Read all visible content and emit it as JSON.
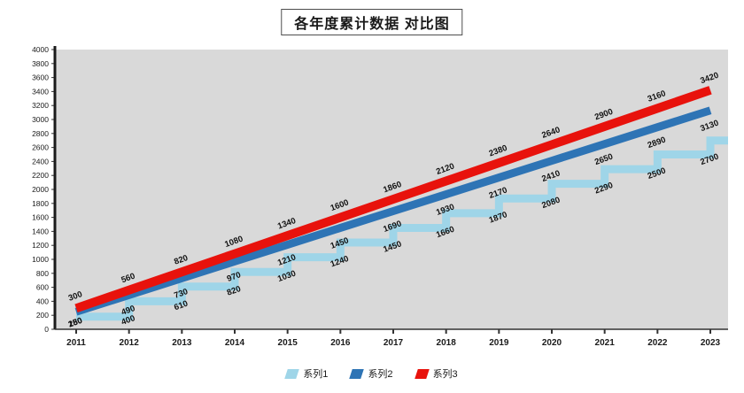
{
  "chart_data": {
    "type": "line",
    "title": "各年度累计数据 对比图",
    "xlabel": "",
    "ylabel": "",
    "categories": [
      "2011",
      "2012",
      "2013",
      "2014",
      "2015",
      "2016",
      "2017",
      "2018",
      "2019",
      "2020",
      "2021",
      "2022",
      "2023"
    ],
    "ylim": [
      0,
      4000
    ],
    "ystep": 200,
    "grid": false,
    "plot_bg": "#d9d9d9",
    "axis_color": "#333333",
    "label_color": "#1a1a1a",
    "legend_position": "bottom",
    "series": [
      {
        "name": "系列1",
        "color": "#9fd5e8",
        "style": "step",
        "values": [
          180,
          400,
          610,
          820,
          1030,
          1240,
          1450,
          1660,
          1870,
          2080,
          2290,
          2500,
          2700
        ]
      },
      {
        "name": "系列2",
        "color": "#2e74b5",
        "style": "line",
        "values": [
          250,
          490,
          730,
          970,
          1210,
          1450,
          1690,
          1930,
          2170,
          2410,
          2650,
          2890,
          3130
        ]
      },
      {
        "name": "系列3",
        "color": "#e8120c",
        "style": "line",
        "values": [
          300,
          560,
          820,
          1080,
          1340,
          1600,
          1860,
          2120,
          2380,
          2640,
          2900,
          3160,
          3420
        ]
      }
    ]
  }
}
